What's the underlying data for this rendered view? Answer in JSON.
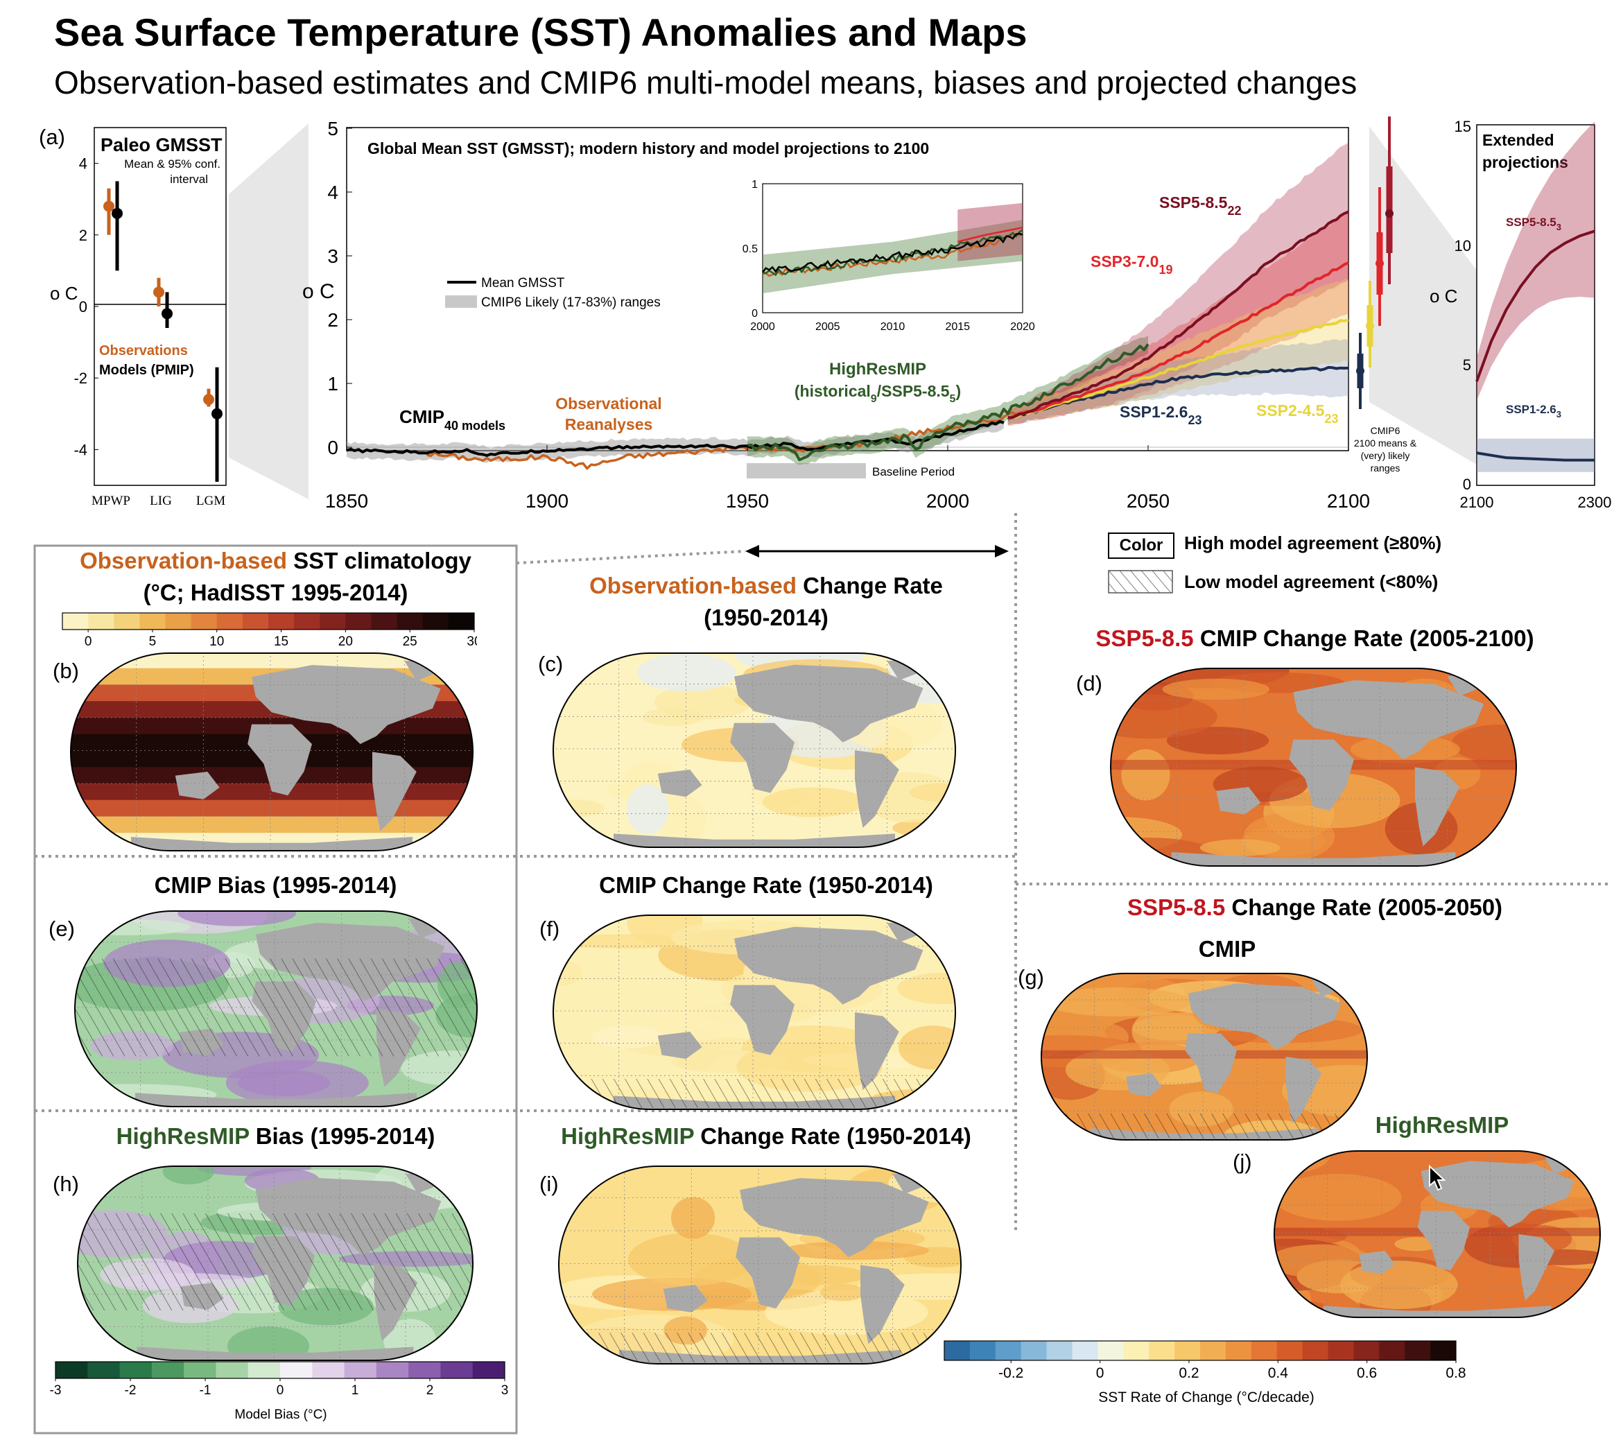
{
  "header": {
    "title": "Sea Surface Temperature (SST) Anomalies and Maps",
    "subtitle": "Observation-based estimates and CMIP6 multi-model means, biases and projected changes"
  },
  "colors": {
    "observations": "#c8621d",
    "models": "#000000",
    "highresmip": "#2f5a27",
    "ssp585": "#7a0f22",
    "ssp370": "#e0262b",
    "ssp245": "#e8d43a",
    "ssp126": "#1d2f4f",
    "land": "#a9a9a9"
  },
  "panel_a": {
    "label": "(a)",
    "title": "Paleo GMSST",
    "note_line1": "Mean & 95% conf.",
    "note_line2": "interval",
    "ylabel": "o C",
    "legend_obs": "Observations",
    "legend_models": "Models (PMIP)",
    "yticks": [
      "4",
      "2",
      "0",
      "-2",
      "-4"
    ]
  },
  "main_plot": {
    "title": "Global Mean SST (GMSST); modern history and model projections to 2100",
    "ylabel": "o C",
    "xticks": [
      "1850",
      "1900",
      "1950",
      "2000",
      "2050",
      "2100"
    ],
    "yticks": [
      "5",
      "4",
      "3",
      "2",
      "1",
      "0"
    ],
    "legend_mean": "Mean GMSST",
    "legend_range": "CMIP6 Likely (17-83%) ranges",
    "baseline": "Baseline Period",
    "cmip_label": "CMIP",
    "cmip_sub": "40 models",
    "obs_label_1": "Observational",
    "obs_label_2": "Reanalyses",
    "hr_label_1": "HighResMIP",
    "hr_label_2a": "(historical",
    "hr_label_2b": "9",
    "hr_label_2c": "/SSP5-8.5",
    "hr_label_2d": "5",
    "hr_label_2e": ")",
    "ssp585": "SSP5-8.5",
    "ssp585_n": "22",
    "ssp370": "SSP3-7.0",
    "ssp370_n": "19",
    "ssp245": "SSP2-4.5",
    "ssp245_n": "23",
    "ssp126": "SSP1-2.6",
    "ssp126_n": "23",
    "cmip6_note_1": "CMIP6",
    "cmip6_note_2": "2100 means &",
    "cmip6_note_3": "(very) likely",
    "cmip6_note_4": "ranges",
    "inset_xticks": [
      "2000",
      "2005",
      "2010",
      "2015",
      "2020"
    ],
    "inset_yticks": [
      "1",
      "0.5",
      "0"
    ]
  },
  "extended": {
    "title_1": "Extended",
    "title_2": "projections",
    "ylabel": "o C",
    "yticks": [
      "15",
      "10",
      "5",
      "0"
    ],
    "xticks": [
      "2100",
      "2300"
    ],
    "ssp585": "SSP5-8.5",
    "ssp585_n": "3",
    "ssp126": "SSP1-2.6",
    "ssp126_n": "3"
  },
  "agreement_legend": {
    "color_box": "Color",
    "high": "High model agreement (≥80%)",
    "low": "Low model agreement (<80%)"
  },
  "maps": {
    "b_title_1a": "Observation-based",
    "b_title_1b": " SST climatology",
    "b_title_2": "(°C; HadISST  1995-2014)",
    "b_ticks": [
      "0",
      "5",
      "10",
      "15",
      "20",
      "25",
      "30"
    ],
    "c_title_1a": "Observation-based",
    "c_title_1b": " Change Rate",
    "c_title_2": "(1950-2014)",
    "d_title_a": "SSP5-8.5",
    "d_title_b": " CMIP Change Rate (2005-2100)",
    "e_title": "CMIP Bias (1995-2014)",
    "f_title": "CMIP Change Rate (1950-2014)",
    "g_header_a": "SSP5-8.5",
    "g_header_b": " Change Rate (2005-2050)",
    "g_title": "CMIP",
    "h_title_a": "HighResMIP",
    "h_title_b": " Bias (1995-2014)",
    "i_title_a": "HighResMIP",
    "i_title_b": " Change Rate (1950-2014)",
    "j_title": "HighResMIP",
    "labels": {
      "b": "(b)",
      "c": "(c)",
      "d": "(d)",
      "e": "(e)",
      "f": "(f)",
      "g": "(g)",
      "h": "(h)",
      "i": "(i)",
      "j": "(j)"
    }
  },
  "bias_colorbar": {
    "ticks": [
      "-3",
      "-2",
      "-1",
      "0",
      "1",
      "2",
      "3"
    ],
    "label": "Model Bias (°C)"
  },
  "rate_colorbar": {
    "ticks": [
      "-0.2",
      "0",
      "0.2",
      "0.4",
      "0.6",
      "0.8"
    ],
    "label": "SST Rate of Change (°C/decade)"
  },
  "chart_data": [
    {
      "type": "scatter",
      "title": "Paleo GMSST",
      "categories": [
        "MPWP",
        "LIG",
        "LGM"
      ],
      "ylim": [
        -5,
        5
      ],
      "series": [
        {
          "name": "Observations",
          "values": [
            2.8,
            0.4,
            -2.6
          ],
          "lower": [
            2.0,
            0.0,
            -2.8
          ],
          "upper": [
            3.3,
            0.8,
            -2.3
          ]
        },
        {
          "name": "Models (PMIP)",
          "values": [
            2.6,
            -0.2,
            -3.0
          ],
          "lower": [
            1.0,
            -0.6,
            -4.9
          ],
          "upper": [
            3.5,
            0.4,
            -1.7
          ]
        }
      ]
    },
    {
      "type": "line",
      "title": "Global Mean SST (GMSST); modern history and model projections to 2100",
      "xlim": [
        1850,
        2100
      ],
      "ylim": [
        -0.3,
        5
      ],
      "baseline_period": [
        1950,
        1980
      ],
      "series": [
        {
          "name": "CMIP",
          "x": [
            1850,
            1870,
            1880,
            1885,
            1900,
            1920,
            1940,
            1950,
            1960,
            1965,
            1975,
            1985,
            1990,
            2000,
            2010,
            2014
          ],
          "y": [
            -0.05,
            -0.08,
            -0.05,
            -0.12,
            -0.05,
            0.0,
            0.02,
            0.0,
            0.05,
            -0.05,
            0.05,
            0.12,
            0.05,
            0.2,
            0.35,
            0.4
          ]
        },
        {
          "name": "Observational Reanalyses",
          "x": [
            1870,
            1885,
            1900,
            1910,
            1920,
            1940,
            1950,
            1960,
            1970,
            1980,
            1990,
            2000,
            2010,
            2020
          ],
          "y": [
            -0.1,
            -0.2,
            -0.15,
            -0.3,
            -0.15,
            -0.05,
            0.0,
            -0.05,
            0.0,
            0.05,
            0.2,
            0.3,
            0.4,
            0.6
          ]
        },
        {
          "name": "HighResMIP",
          "x": [
            1950,
            1960,
            1963,
            1970,
            1980,
            1990,
            1992,
            2000,
            2010,
            2020,
            2030,
            2040,
            2050
          ],
          "y": [
            0.0,
            0.0,
            -0.15,
            0.0,
            0.05,
            0.15,
            0.0,
            0.3,
            0.45,
            0.7,
            1.0,
            1.35,
            1.6
          ]
        },
        {
          "name": "SSP5-8.5",
          "x": [
            2015,
            2030,
            2040,
            2050,
            2060,
            2070,
            2080,
            2090,
            2100
          ],
          "y": [
            0.45,
            0.8,
            1.05,
            1.4,
            1.85,
            2.35,
            2.9,
            3.3,
            3.7
          ]
        },
        {
          "name": "SSP3-7.0",
          "x": [
            2015,
            2030,
            2040,
            2050,
            2060,
            2070,
            2080,
            2090,
            2100
          ],
          "y": [
            0.45,
            0.75,
            0.95,
            1.2,
            1.5,
            1.85,
            2.2,
            2.55,
            2.9
          ]
        },
        {
          "name": "SSP2-4.5",
          "x": [
            2015,
            2030,
            2040,
            2050,
            2060,
            2070,
            2080,
            2090,
            2100
          ],
          "y": [
            0.45,
            0.72,
            0.9,
            1.1,
            1.3,
            1.5,
            1.7,
            1.85,
            2.0
          ]
        },
        {
          "name": "SSP1-2.6",
          "x": [
            2015,
            2030,
            2040,
            2050,
            2060,
            2070,
            2080,
            2090,
            2100
          ],
          "y": [
            0.45,
            0.7,
            0.85,
            1.0,
            1.1,
            1.15,
            1.2,
            1.22,
            1.25
          ]
        }
      ]
    },
    {
      "type": "line",
      "title": "Extended projections",
      "xlim": [
        2100,
        2300
      ],
      "ylim": [
        0,
        15
      ],
      "series": [
        {
          "name": "SSP5-8.5",
          "x": [
            2100,
            2125,
            2150,
            2175,
            2200,
            2225,
            2250,
            2275,
            2300
          ],
          "y": [
            4.3,
            6.0,
            7.3,
            8.3,
            9.1,
            9.7,
            10.1,
            10.4,
            10.6
          ]
        },
        {
          "name": "SSP1-2.6",
          "x": [
            2100,
            2150,
            2200,
            2250,
            2300
          ],
          "y": [
            1.3,
            1.1,
            1.05,
            1.0,
            1.0
          ]
        }
      ]
    }
  ]
}
